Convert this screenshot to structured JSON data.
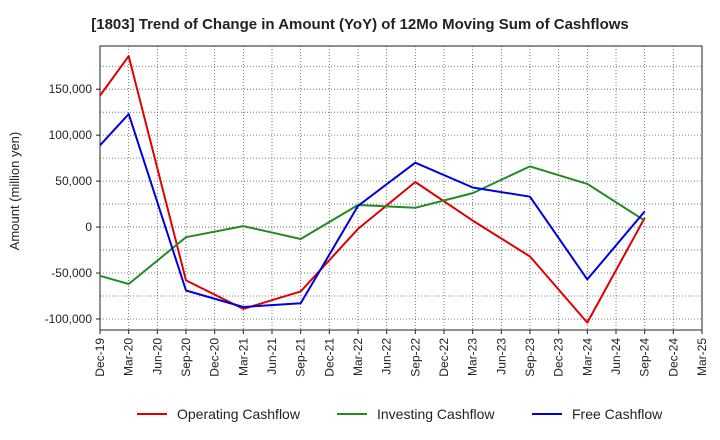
{
  "chart_data": {
    "type": "line",
    "title": "[1803]  Trend of Change in Amount (YoY) of 12Mo Moving Sum of Cashflows",
    "xlabel": "",
    "ylabel": "Amount (million yen)",
    "categories": [
      "Dec-19",
      "Mar-20",
      "Jun-20",
      "Sep-20",
      "Dec-20",
      "Mar-21",
      "Jun-21",
      "Sep-21",
      "Dec-21",
      "Mar-22",
      "Jun-22",
      "Sep-22",
      "Dec-22",
      "Mar-23",
      "Jun-23",
      "Sep-23",
      "Dec-23",
      "Mar-24",
      "Jun-24",
      "Sep-24",
      "Dec-24",
      "Mar-25"
    ],
    "ylim": [
      -112000,
      197000
    ],
    "yticks": [
      150000,
      100000,
      50000,
      0,
      -50000,
      -100000
    ],
    "ytick_labels": [
      "150,000",
      "100,000",
      "50,000",
      "0",
      "-50,000",
      "-100,000"
    ],
    "grid": true,
    "legend_position": "bottom",
    "series": [
      {
        "name": "Operating Cashflow",
        "color": "#e00000",
        "values": [
          143000,
          186000,
          null,
          -58000,
          null,
          -89000,
          null,
          -70000,
          null,
          -2000,
          null,
          49000,
          null,
          7000,
          null,
          -32000,
          null,
          -104000,
          null,
          10000,
          null,
          null
        ]
      },
      {
        "name": "Investing Cashflow",
        "color": "#228b22",
        "values": [
          -53000,
          -62000,
          null,
          -11000,
          null,
          1000,
          null,
          -13000,
          null,
          24000,
          null,
          21000,
          null,
          37000,
          null,
          66000,
          null,
          47000,
          null,
          7000,
          null,
          null
        ]
      },
      {
        "name": "Free Cashflow",
        "color": "#0000dd",
        "values": [
          89000,
          123000,
          null,
          -69000,
          null,
          -87000,
          null,
          -83000,
          null,
          23000,
          null,
          70000,
          null,
          43000,
          null,
          33000,
          null,
          -57000,
          null,
          17000,
          null,
          null
        ]
      }
    ]
  }
}
